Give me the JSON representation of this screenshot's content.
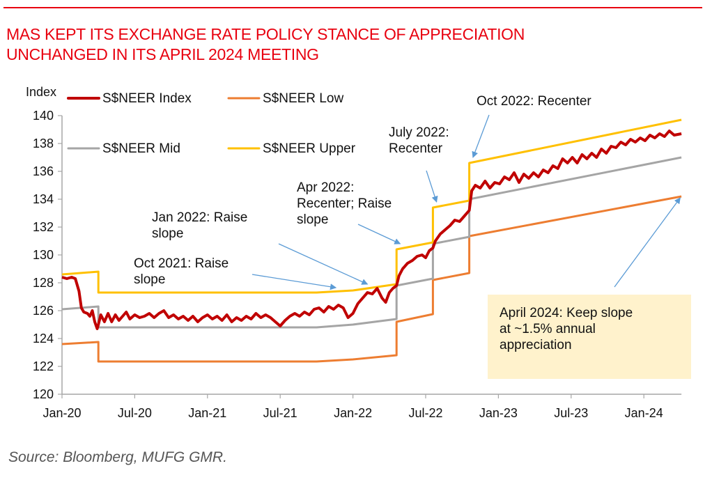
{
  "title_lines": [
    "MAS KEPT ITS EXCHANGE RATE POLICY STANCE OF APPRECIATION",
    "UNCHANGED IN ITS APRIL 2024 MEETING"
  ],
  "source": "Source: Bloomberg, MUFG GMR.",
  "colors": {
    "title": "#e8000f",
    "index": "#c00000",
    "low": "#ed7d31",
    "mid": "#a5a5a5",
    "upper": "#ffc000",
    "arrow": "#5b9bd5",
    "callout_bg": "#fff2cc"
  },
  "chart_data": {
    "type": "line",
    "title": "MAS KEPT ITS EXCHANGE RATE POLICY STANCE OF APPRECIATION UNCHANGED IN ITS APRIL 2024 MEETING",
    "xlabel": "",
    "ylabel": "Index",
    "ylim": [
      120,
      140
    ],
    "yticks": [
      120,
      122,
      124,
      126,
      128,
      130,
      132,
      134,
      136,
      138,
      140
    ],
    "xlim_months_from_jan2020": [
      0,
      51.1
    ],
    "xticks": [
      {
        "m": 0,
        "label": "Jan-20"
      },
      {
        "m": 6,
        "label": "Jul-20"
      },
      {
        "m": 12,
        "label": "Jan-21"
      },
      {
        "m": 18,
        "label": "Jul-21"
      },
      {
        "m": 24,
        "label": "Jan-22"
      },
      {
        "m": 30,
        "label": "Jul-22"
      },
      {
        "m": 36,
        "label": "Jan-23"
      },
      {
        "m": 42,
        "label": "Jul-23"
      },
      {
        "m": 48,
        "label": "Jan-24"
      }
    ],
    "grid": false,
    "legend": {
      "position": "top-left",
      "entries": [
        {
          "key": "index",
          "label": "S$NEER Index"
        },
        {
          "key": "low",
          "label": "S$NEER Low"
        },
        {
          "key": "mid",
          "label": "S$NEER Mid"
        },
        {
          "key": "upper",
          "label": "S$NEER Upper"
        }
      ]
    },
    "series": [
      {
        "name": "S$NEER Upper",
        "key": "upper",
        "points": [
          [
            0,
            128.6
          ],
          [
            3.0,
            128.8
          ],
          [
            3.0,
            127.3
          ],
          [
            21,
            127.3
          ],
          [
            24,
            127.45
          ],
          [
            27.6,
            127.9
          ],
          [
            27.6,
            130.4
          ],
          [
            30.6,
            130.9
          ],
          [
            30.6,
            133.4
          ],
          [
            33.6,
            133.9
          ],
          [
            33.6,
            136.6
          ],
          [
            51.1,
            139.7
          ]
        ]
      },
      {
        "name": "S$NEER Mid",
        "key": "mid",
        "points": [
          [
            0,
            126.1
          ],
          [
            3.0,
            126.3
          ],
          [
            3.0,
            124.8
          ],
          [
            21,
            124.8
          ],
          [
            24,
            125.0
          ],
          [
            27.6,
            125.4
          ],
          [
            27.6,
            127.8
          ],
          [
            30.6,
            128.3
          ],
          [
            30.6,
            130.8
          ],
          [
            33.6,
            131.3
          ],
          [
            33.6,
            134.0
          ],
          [
            51.1,
            137.0
          ]
        ]
      },
      {
        "name": "S$NEER Low",
        "key": "low",
        "points": [
          [
            0,
            123.6
          ],
          [
            3.0,
            123.75
          ],
          [
            3.0,
            122.35
          ],
          [
            21,
            122.35
          ],
          [
            24,
            122.5
          ],
          [
            27.6,
            122.8
          ],
          [
            27.6,
            125.2
          ],
          [
            30.6,
            125.75
          ],
          [
            30.6,
            128.2
          ],
          [
            33.6,
            128.7
          ],
          [
            33.6,
            131.35
          ],
          [
            51.1,
            134.2
          ]
        ]
      },
      {
        "name": "S$NEER Index",
        "key": "index",
        "points": [
          [
            0,
            128.4
          ],
          [
            0.4,
            128.3
          ],
          [
            0.8,
            128.4
          ],
          [
            1.1,
            128.3
          ],
          [
            1.4,
            127.4
          ],
          [
            1.6,
            126.2
          ],
          [
            1.8,
            125.9
          ],
          [
            2.1,
            125.8
          ],
          [
            2.3,
            125.6
          ],
          [
            2.5,
            126.0
          ],
          [
            2.7,
            125.2
          ],
          [
            2.9,
            124.7
          ],
          [
            3.0,
            125.0
          ],
          [
            3.2,
            125.7
          ],
          [
            3.5,
            125.2
          ],
          [
            3.8,
            125.8
          ],
          [
            4.1,
            125.2
          ],
          [
            4.4,
            125.7
          ],
          [
            4.7,
            125.3
          ],
          [
            5.0,
            125.6
          ],
          [
            5.3,
            125.9
          ],
          [
            5.6,
            125.4
          ],
          [
            6.0,
            125.7
          ],
          [
            6.4,
            125.5
          ],
          [
            6.8,
            125.6
          ],
          [
            7.2,
            125.8
          ],
          [
            7.6,
            125.5
          ],
          [
            8.0,
            125.8
          ],
          [
            8.4,
            126.0
          ],
          [
            8.8,
            125.5
          ],
          [
            9.2,
            125.7
          ],
          [
            9.6,
            125.4
          ],
          [
            10.0,
            125.6
          ],
          [
            10.4,
            125.3
          ],
          [
            10.8,
            125.6
          ],
          [
            11.2,
            125.2
          ],
          [
            11.6,
            125.5
          ],
          [
            12.0,
            125.7
          ],
          [
            12.4,
            125.4
          ],
          [
            12.8,
            125.6
          ],
          [
            13.2,
            125.3
          ],
          [
            13.6,
            125.7
          ],
          [
            14.0,
            125.2
          ],
          [
            14.4,
            125.5
          ],
          [
            14.8,
            125.3
          ],
          [
            15.2,
            125.6
          ],
          [
            15.6,
            125.4
          ],
          [
            16.0,
            125.8
          ],
          [
            16.4,
            125.5
          ],
          [
            16.8,
            125.7
          ],
          [
            17.2,
            125.5
          ],
          [
            17.6,
            125.2
          ],
          [
            18.0,
            124.9
          ],
          [
            18.4,
            125.3
          ],
          [
            18.8,
            125.6
          ],
          [
            19.2,
            125.8
          ],
          [
            19.6,
            125.6
          ],
          [
            20.0,
            125.9
          ],
          [
            20.4,
            125.7
          ],
          [
            20.8,
            126.1
          ],
          [
            21.2,
            126.2
          ],
          [
            21.6,
            125.9
          ],
          [
            22.0,
            126.3
          ],
          [
            22.4,
            126.1
          ],
          [
            22.8,
            126.4
          ],
          [
            23.2,
            126.2
          ],
          [
            23.6,
            125.5
          ],
          [
            24.0,
            125.8
          ],
          [
            24.4,
            126.5
          ],
          [
            24.8,
            126.9
          ],
          [
            25.2,
            127.3
          ],
          [
            25.6,
            127.2
          ],
          [
            26.0,
            127.6
          ],
          [
            26.4,
            126.9
          ],
          [
            26.7,
            126.6
          ],
          [
            27.0,
            127.3
          ],
          [
            27.3,
            127.6
          ],
          [
            27.6,
            127.8
          ],
          [
            27.8,
            128.5
          ],
          [
            28.1,
            129.0
          ],
          [
            28.5,
            129.4
          ],
          [
            28.9,
            129.6
          ],
          [
            29.3,
            129.9
          ],
          [
            29.7,
            130.0
          ],
          [
            30.0,
            129.8
          ],
          [
            30.3,
            130.3
          ],
          [
            30.6,
            130.5
          ],
          [
            30.8,
            131.0
          ],
          [
            31.2,
            131.5
          ],
          [
            31.6,
            131.8
          ],
          [
            32.0,
            132.1
          ],
          [
            32.4,
            132.5
          ],
          [
            32.8,
            132.4
          ],
          [
            33.2,
            132.8
          ],
          [
            33.6,
            133.2
          ],
          [
            33.8,
            134.6
          ],
          [
            34.1,
            135.0
          ],
          [
            34.5,
            134.8
          ],
          [
            34.9,
            135.3
          ],
          [
            35.3,
            134.8
          ],
          [
            35.7,
            135.2
          ],
          [
            36.1,
            135.1
          ],
          [
            36.5,
            135.6
          ],
          [
            36.9,
            135.4
          ],
          [
            37.3,
            135.9
          ],
          [
            37.7,
            135.2
          ],
          [
            38.1,
            135.8
          ],
          [
            38.5,
            135.5
          ],
          [
            38.9,
            135.9
          ],
          [
            39.3,
            135.6
          ],
          [
            39.7,
            136.1
          ],
          [
            40.1,
            135.9
          ],
          [
            40.5,
            136.4
          ],
          [
            40.9,
            136.2
          ],
          [
            41.3,
            136.9
          ],
          [
            41.7,
            136.6
          ],
          [
            42.1,
            137.0
          ],
          [
            42.5,
            136.6
          ],
          [
            42.9,
            137.2
          ],
          [
            43.3,
            136.9
          ],
          [
            43.7,
            137.3
          ],
          [
            44.1,
            137.0
          ],
          [
            44.5,
            137.6
          ],
          [
            44.9,
            137.3
          ],
          [
            45.3,
            137.8
          ],
          [
            45.7,
            137.7
          ],
          [
            46.1,
            138.1
          ],
          [
            46.5,
            137.9
          ],
          [
            46.9,
            138.3
          ],
          [
            47.3,
            138.1
          ],
          [
            47.7,
            138.4
          ],
          [
            48.1,
            138.2
          ],
          [
            48.5,
            138.6
          ],
          [
            48.9,
            138.4
          ],
          [
            49.3,
            138.7
          ],
          [
            49.7,
            138.5
          ],
          [
            50.1,
            138.9
          ],
          [
            50.5,
            138.6
          ],
          [
            51.1,
            138.7
          ]
        ]
      }
    ],
    "annotations": [
      {
        "lines": [
          "Oct 2021: Raise",
          "slope"
        ],
        "target_m": 22.6,
        "target_y": 127.35
      },
      {
        "lines": [
          "Jan 2022: Raise",
          "slope"
        ],
        "target_m": 25.2,
        "target_y": 127.6
      },
      {
        "lines": [
          "Apr 2022:",
          "Recenter; Raise",
          "slope"
        ],
        "target_m": 27.9,
        "target_y": 130.5
      },
      {
        "lines": [
          "July 2022:",
          "Recenter"
        ],
        "target_m": 30.9,
        "target_y": 133.5
      },
      {
        "lines": [
          "Oct 2022: Recenter"
        ],
        "target_m": 33.9,
        "target_y": 136.7
      },
      {
        "lines": [
          "April 2024: Keep slope",
          "at ~1.5% annual",
          "appreciation"
        ],
        "target_m": 51.0,
        "target_y": 134.3,
        "boxed": true
      }
    ]
  }
}
